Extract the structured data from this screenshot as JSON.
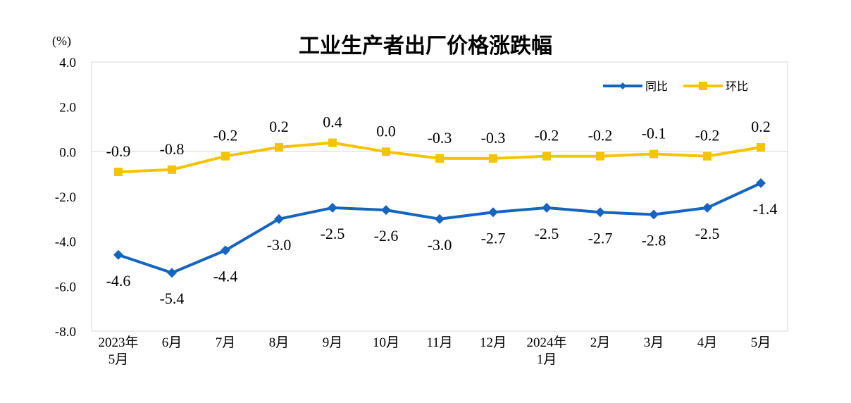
{
  "chart_data": {
    "type": "line",
    "title": "工业生产者出厂价格涨跌幅",
    "unit_label": "(%)",
    "ylim": [
      -8.0,
      4.0
    ],
    "yticks": [
      "4.0",
      "2.0",
      "0.0",
      "-2.0",
      "-4.0",
      "-6.0",
      "-8.0"
    ],
    "ytick_values": [
      4,
      2,
      0,
      -2,
      -4,
      -6,
      -8
    ],
    "categories": [
      [
        "2023年",
        "5月"
      ],
      [
        "6月"
      ],
      [
        "7月"
      ],
      [
        "8月"
      ],
      [
        "9月"
      ],
      [
        "10月"
      ],
      [
        "11月"
      ],
      [
        "12月"
      ],
      [
        "2024年",
        "1月"
      ],
      [
        "2月"
      ],
      [
        "3月"
      ],
      [
        "4月"
      ],
      [
        "5月"
      ]
    ],
    "series": [
      {
        "name": "同比",
        "color": "#1565C0",
        "marker": "diamond",
        "values": [
          -4.6,
          -5.4,
          -4.4,
          -3.0,
          -2.5,
          -2.6,
          -3.0,
          -2.7,
          -2.5,
          -2.7,
          -2.8,
          -2.5,
          -1.4
        ],
        "labels": [
          "-4.6",
          "-5.4",
          "-4.4",
          "-3.0",
          "-2.5",
          "-2.6",
          "-3.0",
          "-2.7",
          "-2.5",
          "-2.7",
          "-2.8",
          "-2.5",
          "-1.4"
        ],
        "label_position": "below"
      },
      {
        "name": "环比",
        "color": "#F5C400",
        "marker": "square",
        "values": [
          -0.9,
          -0.8,
          -0.2,
          0.2,
          0.4,
          0.0,
          -0.3,
          -0.3,
          -0.2,
          -0.2,
          -0.1,
          -0.2,
          0.2
        ],
        "labels": [
          "-0.9",
          "-0.8",
          "-0.2",
          "0.2",
          "0.4",
          "0.0",
          "-0.3",
          "-0.3",
          "-0.2",
          "-0.2",
          "-0.1",
          "-0.2",
          "0.2"
        ],
        "label_position": "above"
      }
    ],
    "legend_position": "top-right",
    "grid": false,
    "zero_line": true
  }
}
